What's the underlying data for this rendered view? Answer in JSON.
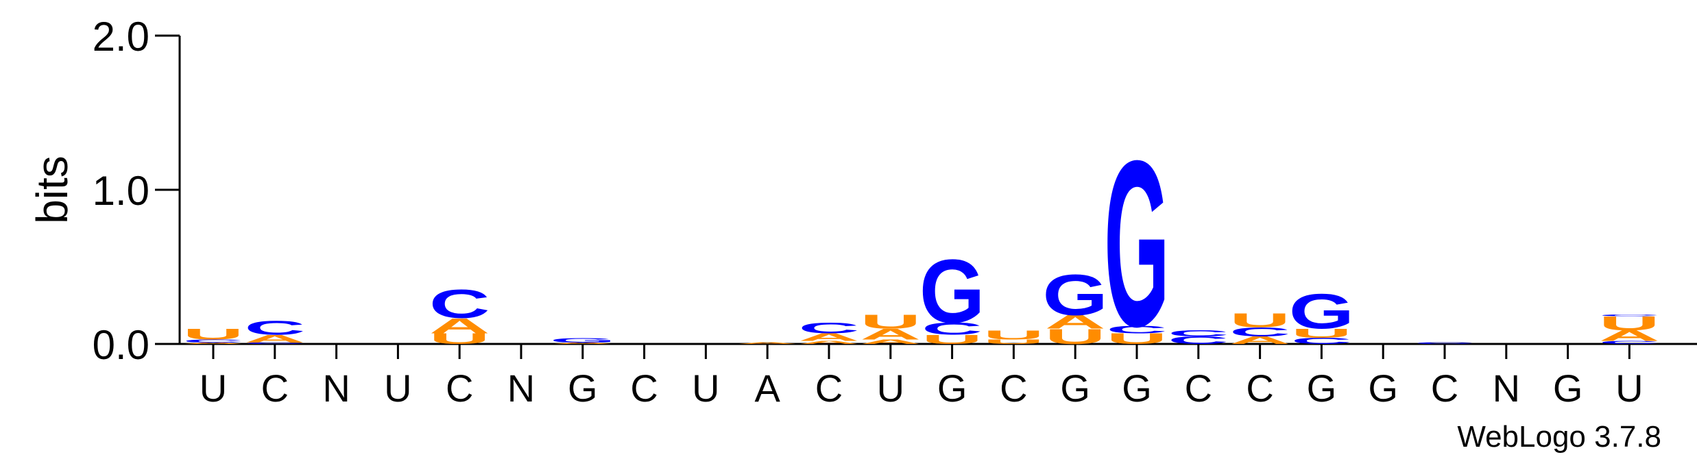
{
  "chart_data": {
    "type": "sequence-logo",
    "ylabel": "bits",
    "ylim": [
      0,
      2.0
    ],
    "yticks": [
      {
        "value": 0.0,
        "label": "0.0"
      },
      {
        "value": 1.0,
        "label": "1.0"
      },
      {
        "value": 2.0,
        "label": "2.0"
      }
    ],
    "xlabels": [
      "U",
      "C",
      "N",
      "U",
      "C",
      "N",
      "G",
      "C",
      "U",
      "A",
      "C",
      "U",
      "G",
      "C",
      "G",
      "G",
      "C",
      "C",
      "G",
      "G",
      "C",
      "N",
      "G",
      "U"
    ],
    "colors": {
      "A": "#ff8c00",
      "U": "#ff8c00",
      "C": "#0000ff",
      "G": "#0000ff"
    },
    "positions": [
      {
        "letters": [
          {
            "l": "A",
            "h": 0.01
          },
          {
            "l": "C",
            "h": 0.02
          },
          {
            "l": "U",
            "h": 0.07
          }
        ]
      },
      {
        "letters": [
          {
            "l": "C",
            "h": 0.01
          },
          {
            "l": "A",
            "h": 0.05
          },
          {
            "l": "C",
            "h": 0.09
          }
        ]
      },
      {
        "letters": []
      },
      {
        "letters": []
      },
      {
        "letters": [
          {
            "l": "U",
            "h": 0.07
          },
          {
            "l": "A",
            "h": 0.1
          },
          {
            "l": "C",
            "h": 0.19
          }
        ]
      },
      {
        "letters": []
      },
      {
        "letters": [
          {
            "l": "A",
            "h": 0.01
          },
          {
            "l": "G",
            "h": 0.03
          }
        ]
      },
      {
        "letters": []
      },
      {
        "letters": []
      },
      {
        "letters": [
          {
            "l": "A",
            "h": 0.01
          }
        ]
      },
      {
        "letters": [
          {
            "l": "A",
            "h": 0.02
          },
          {
            "l": "A",
            "h": 0.05
          },
          {
            "l": "C",
            "h": 0.07
          }
        ]
      },
      {
        "letters": [
          {
            "l": "A",
            "h": 0.03
          },
          {
            "l": "A",
            "h": 0.07
          },
          {
            "l": "U",
            "h": 0.09
          }
        ]
      },
      {
        "letters": [
          {
            "l": "U",
            "h": 0.06
          },
          {
            "l": "C",
            "h": 0.08
          },
          {
            "l": "G",
            "h": 0.42
          }
        ]
      },
      {
        "letters": [
          {
            "l": "U",
            "h": 0.03
          },
          {
            "l": "U",
            "h": 0.06
          }
        ]
      },
      {
        "letters": [
          {
            "l": "U",
            "h": 0.1
          },
          {
            "l": "A",
            "h": 0.09
          },
          {
            "l": "G",
            "h": 0.27
          }
        ]
      },
      {
        "letters": [
          {
            "l": "U",
            "h": 0.07
          },
          {
            "l": "C",
            "h": 0.05
          },
          {
            "l": "G",
            "h": 1.1
          }
        ]
      },
      {
        "letters": [
          {
            "l": "C",
            "h": 0.05
          },
          {
            "l": "C",
            "h": 0.04
          }
        ]
      },
      {
        "letters": [
          {
            "l": "A",
            "h": 0.05
          },
          {
            "l": "C",
            "h": 0.06
          },
          {
            "l": "U",
            "h": 0.09
          }
        ]
      },
      {
        "letters": [
          {
            "l": "C",
            "h": 0.04
          },
          {
            "l": "U",
            "h": 0.06
          },
          {
            "l": "G",
            "h": 0.23
          }
        ]
      },
      {
        "letters": []
      },
      {
        "letters": [
          {
            "l": "C",
            "h": 0.01
          }
        ]
      },
      {
        "letters": []
      },
      {
        "letters": []
      },
      {
        "letters": [
          {
            "l": "C",
            "h": 0.02
          },
          {
            "l": "A",
            "h": 0.07
          },
          {
            "l": "U",
            "h": 0.09
          },
          {
            "l": "C",
            "h": 0.01
          }
        ]
      }
    ]
  },
  "footer": {
    "credit": "WebLogo 3.7.8"
  }
}
